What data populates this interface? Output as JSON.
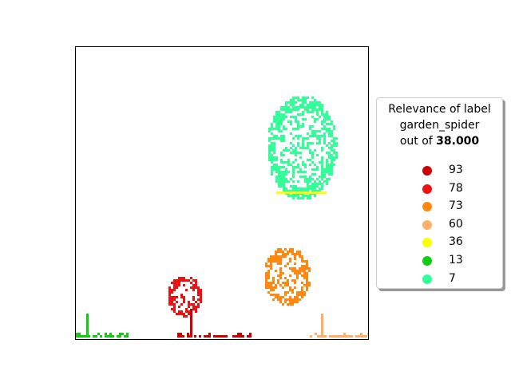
{
  "chart_data": {
    "type": "scatter",
    "title": "",
    "xlabel": "",
    "ylabel": "",
    "grid": false,
    "legend": {
      "placement": "right",
      "title_line1": "Relevance of label",
      "title_line2": "garden_spider",
      "title_prefix": "out of ",
      "title_bold": "38.000",
      "entries": [
        {
          "label": "93",
          "color": "#cc0000"
        },
        {
          "label": "78",
          "color": "#ee1111"
        },
        {
          "label": "73",
          "color": "#ff8811"
        },
        {
          "label": "60",
          "color": "#ffb066"
        },
        {
          "label": "36",
          "color": "#ffff00"
        },
        {
          "label": "13",
          "color": "#11cc11"
        },
        {
          "label": "7",
          "color": "#33ff99"
        }
      ]
    },
    "regions": [
      {
        "level": "7",
        "color": "#33ff99",
        "cx": 0.77,
        "cy": 0.34,
        "rx": 0.12,
        "ry": 0.18
      },
      {
        "level": "36",
        "color": "#ffff00",
        "x0": 0.685,
        "x1": 0.85,
        "y": 0.495
      },
      {
        "level": "73",
        "color": "#ff8811",
        "cx": 0.72,
        "cy": 0.78,
        "rx": 0.08,
        "ry": 0.1
      },
      {
        "level": "78",
        "color": "#ee1111",
        "cx": 0.37,
        "cy": 0.85,
        "rx": 0.06,
        "ry": 0.07
      },
      {
        "level": "93",
        "color": "#cc0000",
        "x0": 0.34,
        "x1": 0.6,
        "y": 0.995
      },
      {
        "level": "13",
        "color": "#11cc11",
        "x0": 0.0,
        "x1": 0.18,
        "y": 0.995
      },
      {
        "level": "60",
        "color": "#ffb066",
        "x0": 0.8,
        "x1": 1.0,
        "y": 0.995
      }
    ]
  }
}
